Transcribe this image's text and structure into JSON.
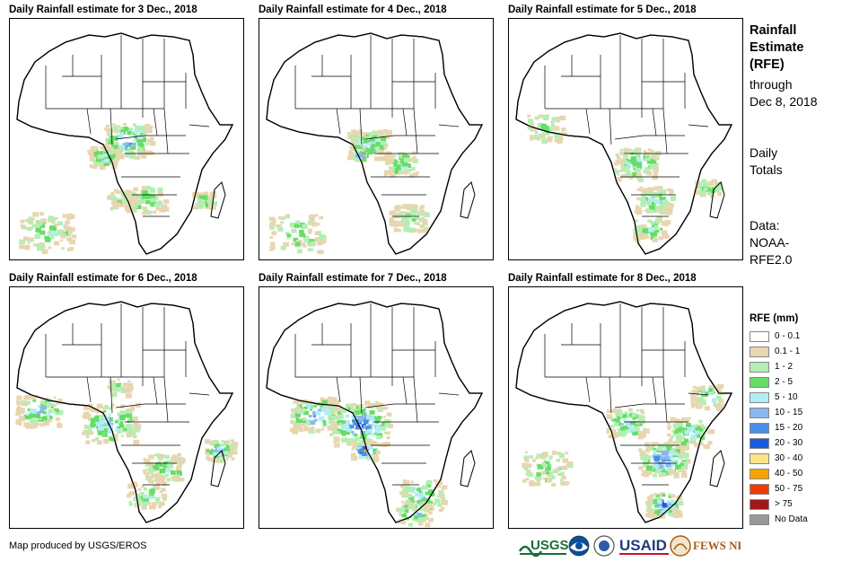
{
  "panels": [
    {
      "title": "Daily Rainfall estimate for 3 Dec., 2018"
    },
    {
      "title": "Daily Rainfall estimate for 4 Dec., 2018"
    },
    {
      "title": "Daily Rainfall estimate for 5 Dec., 2018"
    },
    {
      "title": "Daily Rainfall estimate for 6 Dec., 2018"
    },
    {
      "title": "Daily Rainfall estimate for 7 Dec., 2018"
    },
    {
      "title": "Daily Rainfall estimate for 8 Dec., 2018"
    }
  ],
  "side": {
    "title_lines": [
      "Rainfall",
      "Estimate",
      "(RFE)"
    ],
    "through_lines": [
      "through",
      "Dec 8, 2018"
    ],
    "totals_lines": [
      "Daily",
      "Totals"
    ],
    "data_lines": [
      "Data:",
      "NOAA-",
      "RFE2.0"
    ]
  },
  "legend": {
    "title": "RFE (mm)",
    "items": [
      {
        "label": "0 - 0.1",
        "color": "#ffffff"
      },
      {
        "label": "0.1 - 1",
        "color": "#e8d6b0"
      },
      {
        "label": "1 - 2",
        "color": "#b4eeb4"
      },
      {
        "label": "2 - 5",
        "color": "#66dd66"
      },
      {
        "label": "5 - 10",
        "color": "#b0eef4"
      },
      {
        "label": "10 - 15",
        "color": "#8ab8ee"
      },
      {
        "label": "15 - 20",
        "color": "#4a90e2"
      },
      {
        "label": "20 - 30",
        "color": "#1a5adc"
      },
      {
        "label": "30 - 40",
        "color": "#fce38a"
      },
      {
        "label": "40 - 50",
        "color": "#f5a300"
      },
      {
        "label": "50 - 75",
        "color": "#f03c00"
      },
      {
        "label": "> 75",
        "color": "#a01818"
      },
      {
        "label": "No Data",
        "color": "#999999"
      }
    ]
  },
  "credit": "Map produced by USGS/EROS",
  "logos": {
    "usgs": "USGS",
    "usaid": "USAID",
    "fewsnet": "FEWS NET"
  }
}
